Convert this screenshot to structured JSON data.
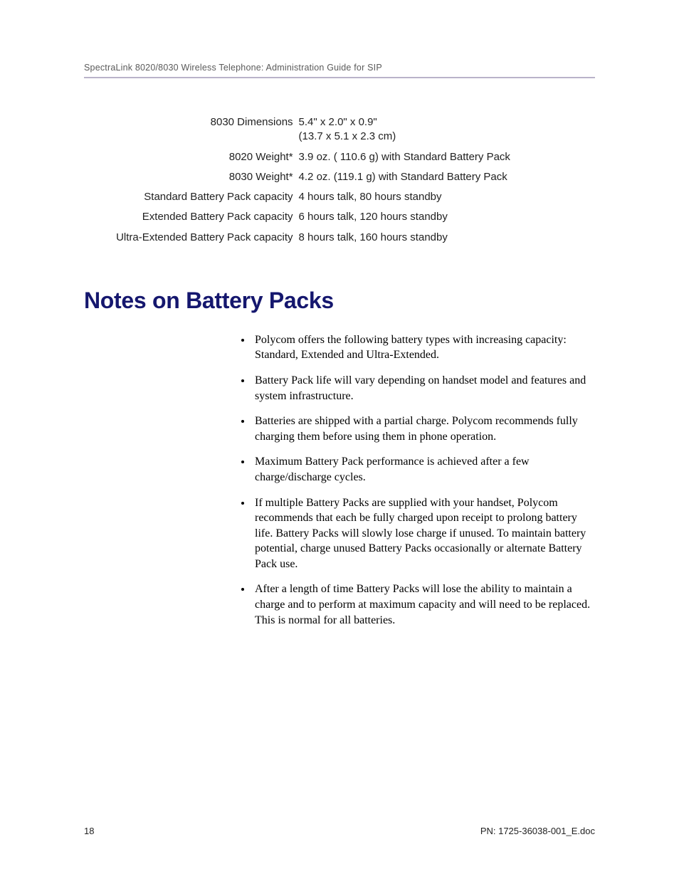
{
  "header": {
    "text": "SpectraLink 8020/8030 Wireless Telephone: Administration Guide for SIP"
  },
  "specs": {
    "rows": [
      {
        "label": "8030 Dimensions",
        "value": "5.4\" x 2.0\" x 0.9\"\n(13.7 x 5.1 x 2.3 cm)"
      },
      {
        "label": "8020 Weight*",
        "value": "3.9 oz. ( 110.6 g) with Standard Battery Pack"
      },
      {
        "label": "8030 Weight*",
        "value": "4.2 oz. (119.1 g) with Standard Battery Pack"
      },
      {
        "label": "Standard Battery Pack capacity",
        "value": "4 hours talk, 80 hours standby"
      },
      {
        "label": "Extended Battery Pack capacity",
        "value": "6 hours talk, 120 hours standby"
      },
      {
        "label": "Ultra-Extended Battery Pack capacity",
        "value": "8 hours talk, 160 hours standby"
      }
    ]
  },
  "section": {
    "heading": "Notes on Battery Packs",
    "notes": [
      "Polycom offers the following battery types with increasing capacity:  Standard, Extended and Ultra-Extended.",
      "Battery Pack life will vary depending on handset model and features and system infrastructure.",
      "Batteries are shipped with a partial charge. Polycom recommends fully charging them before using them in phone operation.",
      "Maximum Battery Pack performance is achieved after a few charge/discharge cycles.",
      "If multiple Battery Packs are supplied with your handset, Polycom recommends that each be fully charged upon receipt to prolong battery life.  Battery Packs will slowly lose charge if unused.  To maintain battery potential, charge unused Battery Packs occasionally or alternate Battery Pack use.",
      "After a length of time Battery Packs will lose the ability to maintain a charge and to perform at maximum capacity and will need to be replaced.  This is normal for all batteries."
    ]
  },
  "footer": {
    "page_number": "18",
    "doc_ref": "PN: 1725-36038-001_E.doc"
  },
  "colors": {
    "heading": "#15176e",
    "rule": "#b9b3c9",
    "header_text": "#5a5a5a",
    "body_text": "#000000"
  }
}
